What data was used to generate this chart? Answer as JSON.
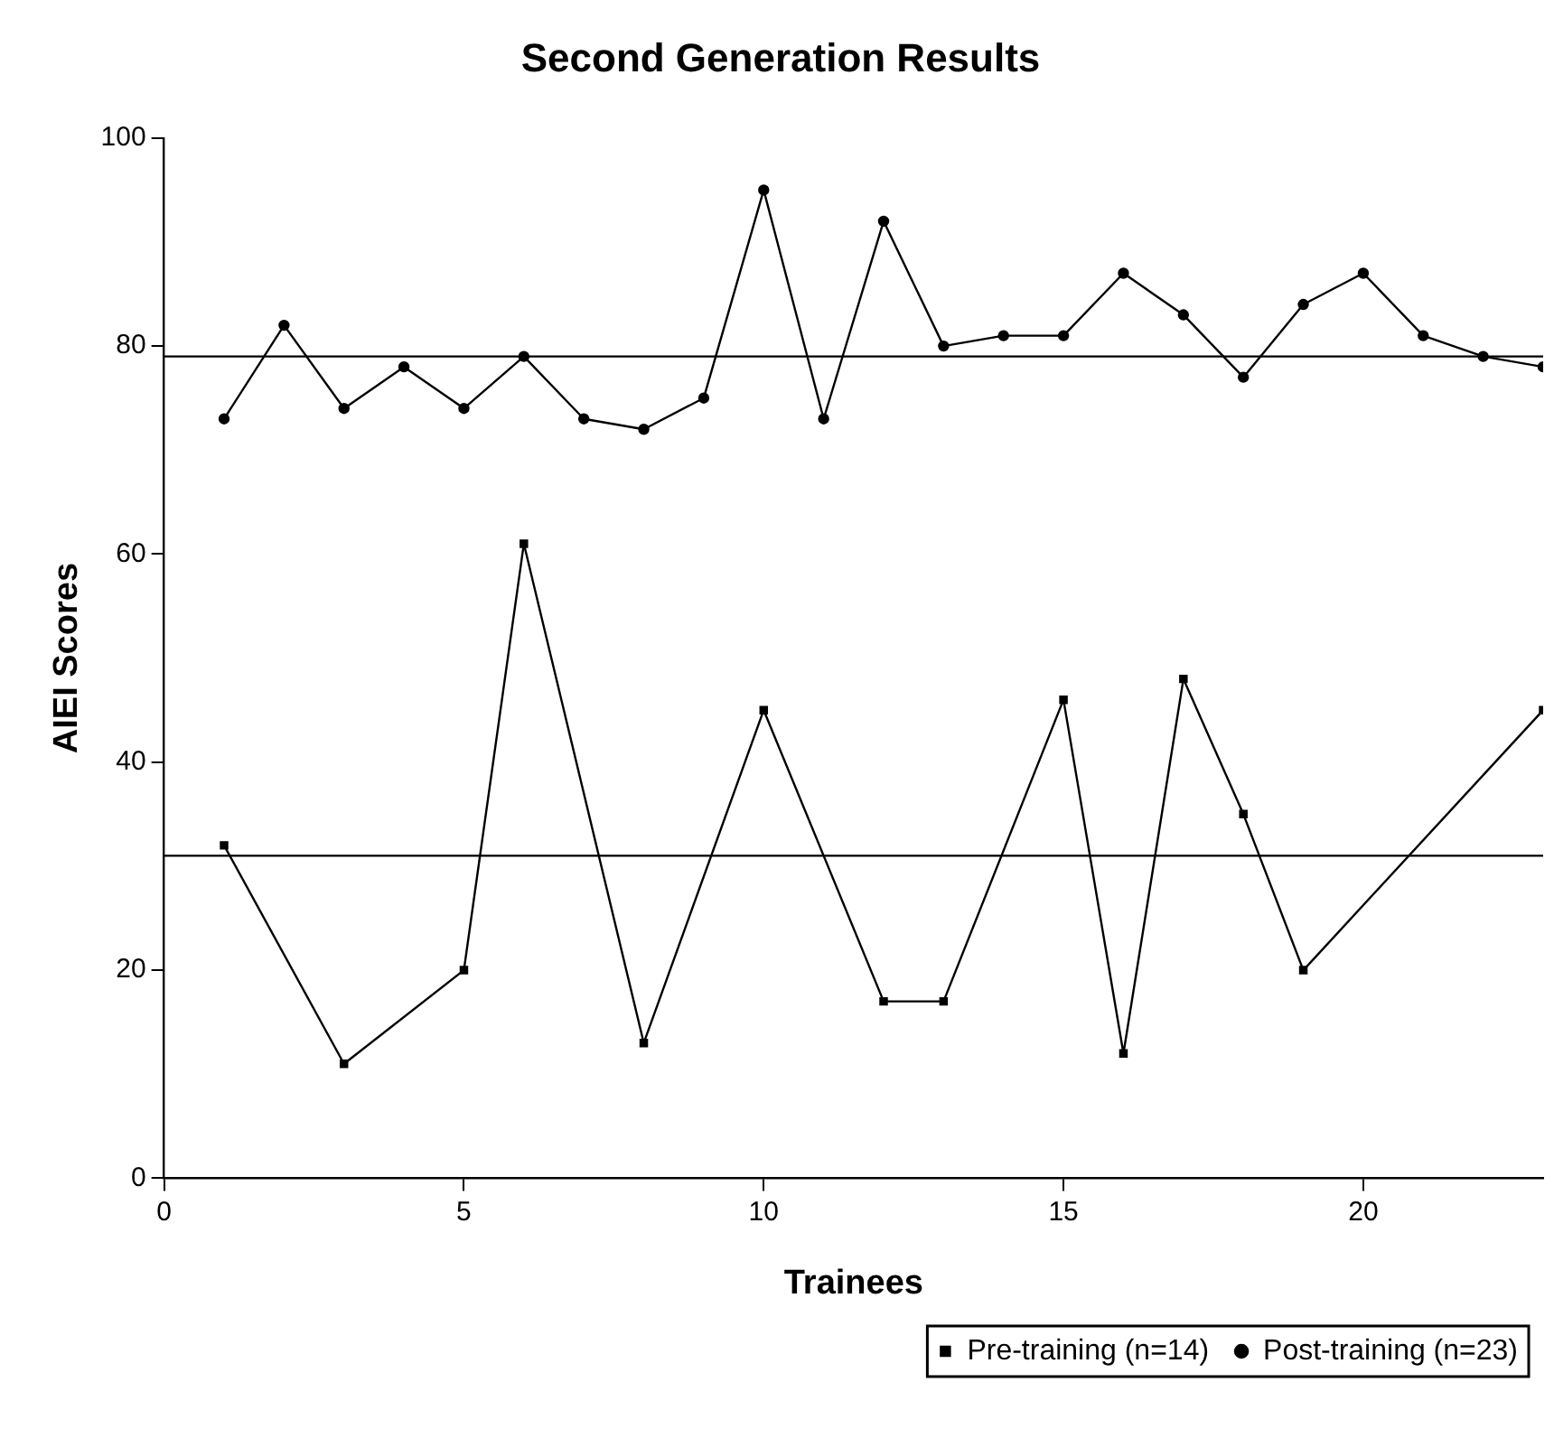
{
  "chart_data": {
    "type": "line",
    "title": "Second Generation Results",
    "xlabel": "Trainees",
    "ylabel": "AIEI Scores",
    "xlim": [
      0,
      23
    ],
    "xticks": [
      0,
      5,
      10,
      15,
      20
    ],
    "ylim": [
      0,
      100
    ],
    "yticks": [
      0,
      20,
      40,
      60,
      80,
      100
    ],
    "grid": false,
    "legend": "bottom right",
    "series": [
      {
        "name": "Pre-training (n=14)",
        "color": "#000000",
        "marker": "square",
        "x": [
          1,
          3,
          5,
          6,
          8,
          10,
          12,
          13,
          15,
          16,
          17,
          18,
          19,
          23
        ],
        "values": [
          32,
          11,
          20,
          61,
          13,
          45,
          17,
          17,
          46,
          12,
          48,
          35,
          20,
          45
        ]
      },
      {
        "name": "Post-training (n=23)",
        "color": "#000000",
        "marker": "circle",
        "x": [
          1,
          2,
          3,
          4,
          5,
          6,
          7,
          8,
          9,
          10,
          11,
          12,
          13,
          14,
          15,
          16,
          17,
          18,
          19,
          20,
          21,
          22,
          23
        ],
        "values": [
          73,
          82,
          74,
          78,
          74,
          79,
          73,
          72,
          75,
          95,
          73,
          92,
          80,
          81,
          81,
          87,
          83,
          77,
          84,
          87,
          81,
          79,
          78
        ]
      }
    ],
    "ref_lines": [
      {
        "axis": "y",
        "value": 31,
        "color": "#000000"
      },
      {
        "axis": "y",
        "value": 79,
        "color": "#000000"
      }
    ]
  }
}
